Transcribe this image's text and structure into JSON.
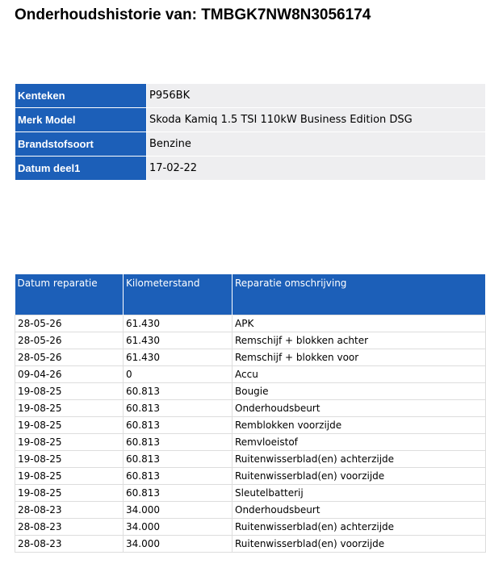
{
  "header": {
    "title": "Onderhoudshistorie van: TMBGK7NW8N3056174"
  },
  "vehicle": {
    "rows": [
      [
        "Kenteken",
        "P956BK"
      ],
      [
        "Merk Model",
        "Skoda Kamiq 1.5 TSI 110kW Business Edition DSG"
      ],
      [
        "Brandstofsoort",
        "Benzine"
      ],
      [
        "Datum deel1",
        "17-02-22"
      ]
    ]
  },
  "repairs": {
    "columns": [
      "Datum reparatie",
      "Kilometerstand",
      "Reparatie omschrijving"
    ],
    "rows": [
      [
        "28-05-26",
        "61.430",
        "APK"
      ],
      [
        "28-05-26",
        "61.430",
        "Remschijf + blokken achter"
      ],
      [
        "28-05-26",
        "61.430",
        "Remschijf + blokken voor"
      ],
      [
        "09-04-26",
        "0",
        "Accu"
      ],
      [
        "19-08-25",
        "60.813",
        "Bougie"
      ],
      [
        "19-08-25",
        "60.813",
        "Onderhoudsbeurt"
      ],
      [
        "19-08-25",
        "60.813",
        "Remblokken voorzijde"
      ],
      [
        "19-08-25",
        "60.813",
        "Remvloeistof"
      ],
      [
        "19-08-25",
        "60.813",
        "Ruitenwisserblad(en) achterzijde"
      ],
      [
        "19-08-25",
        "60.813",
        "Ruitenwisserblad(en) voorzijde"
      ],
      [
        "19-08-25",
        "60.813",
        "Sleutelbatterij"
      ],
      [
        "28-08-23",
        "34.000",
        "Onderhoudsbeurt"
      ],
      [
        "28-08-23",
        "34.000",
        "Ruitenwisserblad(en) achterzijde"
      ],
      [
        "28-08-23",
        "34.000",
        "Ruitenwisserblad(en) voorzijde"
      ]
    ]
  }
}
